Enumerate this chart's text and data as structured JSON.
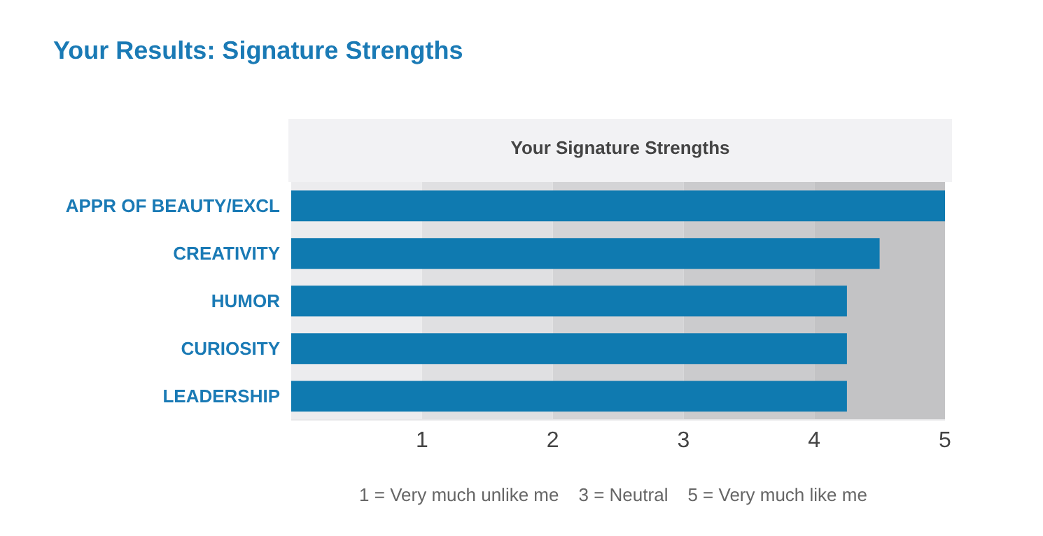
{
  "chart_data": {
    "type": "bar",
    "orientation": "horizontal",
    "title": "Your Results: Signature Strengths",
    "subtitle": "Your Signature Strengths",
    "categories": [
      "APPR OF BEAUTY/EXCL",
      "CREATIVITY",
      "HUMOR",
      "CURIOSITY",
      "LEADERSHIP"
    ],
    "values": [
      5,
      4.5,
      4.25,
      4.25,
      4.25
    ],
    "color": "#0f7ab0",
    "xlim": [
      0,
      5
    ],
    "xticks": [
      1,
      2,
      3,
      4,
      5
    ],
    "bands": [
      {
        "axis": "x",
        "from": 0,
        "to": 1,
        "color": "#ececee"
      },
      {
        "axis": "x",
        "from": 1,
        "to": 2,
        "color": "#e0e0e2"
      },
      {
        "axis": "x",
        "from": 2,
        "to": 3,
        "color": "#d4d4d6"
      },
      {
        "axis": "x",
        "from": 3,
        "to": 4,
        "color": "#cbcbcd"
      },
      {
        "axis": "x",
        "from": 4,
        "to": 5,
        "color": "#c3c3c5"
      }
    ],
    "annotations": [
      "1 = Very much unlike me",
      "3 = Neutral",
      "5 = Very much like me"
    ]
  }
}
